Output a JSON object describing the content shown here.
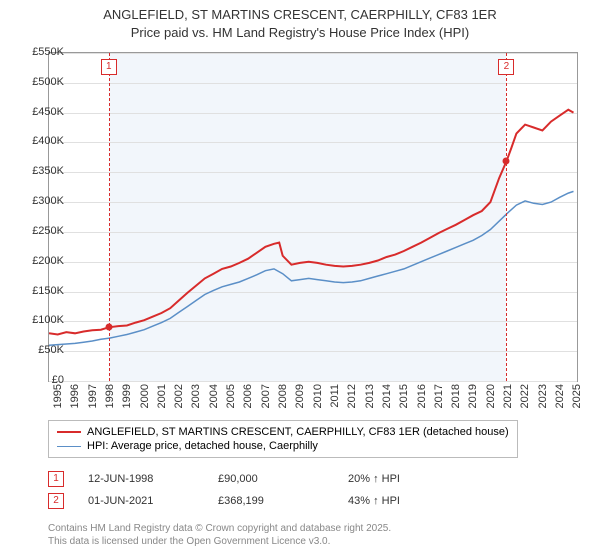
{
  "title_line1": "ANGLEFIELD, ST MARTINS CRESCENT, CAERPHILLY, CF83 1ER",
  "title_line2": "Price paid vs. HM Land Registry's House Price Index (HPI)",
  "chart": {
    "type": "line",
    "x_min": 1995,
    "x_max": 2025.5,
    "y_min": 0,
    "y_max": 550000,
    "y_ticks": [
      0,
      50000,
      100000,
      150000,
      200000,
      250000,
      300000,
      350000,
      400000,
      450000,
      500000,
      550000
    ],
    "y_tick_labels": [
      "£0",
      "£50K",
      "£100K",
      "£150K",
      "£200K",
      "£250K",
      "£300K",
      "£350K",
      "£400K",
      "£450K",
      "£500K",
      "£550K"
    ],
    "x_ticks": [
      1995,
      1996,
      1997,
      1998,
      1999,
      2000,
      2001,
      2002,
      2003,
      2004,
      2005,
      2006,
      2007,
      2008,
      2009,
      2010,
      2011,
      2012,
      2013,
      2014,
      2015,
      2016,
      2017,
      2018,
      2019,
      2020,
      2021,
      2022,
      2023,
      2024,
      2025
    ],
    "background_color": "#ffffff",
    "grid_color": "#e0e0e0",
    "border_color": "#999999",
    "plot_bands": [
      {
        "from": 1998.45,
        "to": 2021.42,
        "color": "#f2f6fb"
      }
    ],
    "markers": [
      {
        "id": "1",
        "x": 1998.45,
        "point_y": 90000,
        "point_color": "#d82b2b"
      },
      {
        "id": "2",
        "x": 2021.42,
        "point_y": 368199,
        "point_color": "#d82b2b"
      }
    ],
    "series": [
      {
        "name": "price_paid",
        "label": "ANGLEFIELD, ST MARTINS CRESCENT, CAERPHILLY, CF83 1ER (detached house)",
        "color": "#d82b2b",
        "line_width": 2,
        "data": [
          [
            1995,
            80000
          ],
          [
            1995.5,
            78000
          ],
          [
            1996,
            82000
          ],
          [
            1996.5,
            80000
          ],
          [
            1997,
            83000
          ],
          [
            1997.5,
            85000
          ],
          [
            1998,
            86000
          ],
          [
            1998.45,
            90000
          ],
          [
            1999,
            92000
          ],
          [
            1999.5,
            93000
          ],
          [
            2000,
            98000
          ],
          [
            2000.5,
            102000
          ],
          [
            2001,
            108000
          ],
          [
            2001.5,
            114000
          ],
          [
            2002,
            122000
          ],
          [
            2002.5,
            135000
          ],
          [
            2003,
            148000
          ],
          [
            2003.5,
            160000
          ],
          [
            2004,
            172000
          ],
          [
            2004.5,
            180000
          ],
          [
            2005,
            188000
          ],
          [
            2005.5,
            192000
          ],
          [
            2006,
            198000
          ],
          [
            2006.5,
            205000
          ],
          [
            2007,
            215000
          ],
          [
            2007.5,
            225000
          ],
          [
            2008,
            230000
          ],
          [
            2008.3,
            232000
          ],
          [
            2008.5,
            210000
          ],
          [
            2009,
            195000
          ],
          [
            2009.5,
            198000
          ],
          [
            2010,
            200000
          ],
          [
            2010.5,
            198000
          ],
          [
            2011,
            195000
          ],
          [
            2011.5,
            193000
          ],
          [
            2012,
            192000
          ],
          [
            2012.5,
            193000
          ],
          [
            2013,
            195000
          ],
          [
            2013.5,
            198000
          ],
          [
            2014,
            202000
          ],
          [
            2014.5,
            208000
          ],
          [
            2015,
            212000
          ],
          [
            2015.5,
            218000
          ],
          [
            2016,
            225000
          ],
          [
            2016.5,
            232000
          ],
          [
            2017,
            240000
          ],
          [
            2017.5,
            248000
          ],
          [
            2018,
            255000
          ],
          [
            2018.5,
            262000
          ],
          [
            2019,
            270000
          ],
          [
            2019.5,
            278000
          ],
          [
            2020,
            285000
          ],
          [
            2020.5,
            300000
          ],
          [
            2021,
            340000
          ],
          [
            2021.42,
            368199
          ],
          [
            2021.7,
            390000
          ],
          [
            2022,
            415000
          ],
          [
            2022.5,
            430000
          ],
          [
            2023,
            425000
          ],
          [
            2023.5,
            420000
          ],
          [
            2024,
            435000
          ],
          [
            2024.5,
            445000
          ],
          [
            2025,
            455000
          ],
          [
            2025.3,
            450000
          ]
        ]
      },
      {
        "name": "hpi",
        "label": "HPI: Average price, detached house, Caerphilly",
        "color": "#5b8fc7",
        "line_width": 1.5,
        "data": [
          [
            1995,
            60000
          ],
          [
            1995.5,
            61000
          ],
          [
            1996,
            62000
          ],
          [
            1996.5,
            63000
          ],
          [
            1997,
            65000
          ],
          [
            1997.5,
            67000
          ],
          [
            1998,
            70000
          ],
          [
            1998.5,
            72000
          ],
          [
            1999,
            75000
          ],
          [
            1999.5,
            78000
          ],
          [
            2000,
            82000
          ],
          [
            2000.5,
            86000
          ],
          [
            2001,
            92000
          ],
          [
            2001.5,
            98000
          ],
          [
            2002,
            105000
          ],
          [
            2002.5,
            115000
          ],
          [
            2003,
            125000
          ],
          [
            2003.5,
            135000
          ],
          [
            2004,
            145000
          ],
          [
            2004.5,
            152000
          ],
          [
            2005,
            158000
          ],
          [
            2005.5,
            162000
          ],
          [
            2006,
            166000
          ],
          [
            2006.5,
            172000
          ],
          [
            2007,
            178000
          ],
          [
            2007.5,
            185000
          ],
          [
            2008,
            188000
          ],
          [
            2008.5,
            180000
          ],
          [
            2009,
            168000
          ],
          [
            2009.5,
            170000
          ],
          [
            2010,
            172000
          ],
          [
            2010.5,
            170000
          ],
          [
            2011,
            168000
          ],
          [
            2011.5,
            166000
          ],
          [
            2012,
            165000
          ],
          [
            2012.5,
            166000
          ],
          [
            2013,
            168000
          ],
          [
            2013.5,
            172000
          ],
          [
            2014,
            176000
          ],
          [
            2014.5,
            180000
          ],
          [
            2015,
            184000
          ],
          [
            2015.5,
            188000
          ],
          [
            2016,
            194000
          ],
          [
            2016.5,
            200000
          ],
          [
            2017,
            206000
          ],
          [
            2017.5,
            212000
          ],
          [
            2018,
            218000
          ],
          [
            2018.5,
            224000
          ],
          [
            2019,
            230000
          ],
          [
            2019.5,
            236000
          ],
          [
            2020,
            244000
          ],
          [
            2020.5,
            254000
          ],
          [
            2021,
            268000
          ],
          [
            2021.5,
            282000
          ],
          [
            2022,
            295000
          ],
          [
            2022.5,
            302000
          ],
          [
            2023,
            298000
          ],
          [
            2023.5,
            296000
          ],
          [
            2024,
            300000
          ],
          [
            2024.5,
            308000
          ],
          [
            2025,
            315000
          ],
          [
            2025.3,
            318000
          ]
        ]
      }
    ]
  },
  "legend": {
    "items": [
      {
        "color": "#d82b2b",
        "width": 2,
        "label_path": "chart.series.0.label"
      },
      {
        "color": "#5b8fc7",
        "width": 1.5,
        "label_path": "chart.series.1.label"
      }
    ]
  },
  "transactions": [
    {
      "marker": "1",
      "date": "12-JUN-1998",
      "price": "£90,000",
      "pct": "20% ↑ HPI"
    },
    {
      "marker": "2",
      "date": "01-JUN-2021",
      "price": "£368,199",
      "pct": "43% ↑ HPI"
    }
  ],
  "footer_line1": "Contains HM Land Registry data © Crown copyright and database right 2025.",
  "footer_line2": "This data is licensed under the Open Government Licence v3.0."
}
